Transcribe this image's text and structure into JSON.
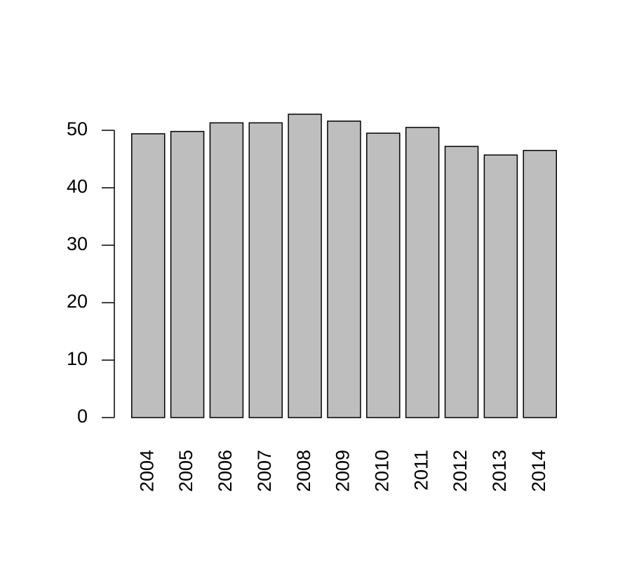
{
  "chart_data": {
    "type": "bar",
    "categories": [
      "2004",
      "2005",
      "2006",
      "2007",
      "2008",
      "2009",
      "2010",
      "2011",
      "2012",
      "2013",
      "2014"
    ],
    "values": [
      49.4,
      49.8,
      51.3,
      51.3,
      52.8,
      51.6,
      49.5,
      50.5,
      47.2,
      45.7,
      46.5
    ],
    "color": "#bebebe",
    "ylim": [
      0,
      50
    ],
    "yticks": [
      0,
      10,
      20,
      30,
      40,
      50
    ],
    "grid": false
  }
}
